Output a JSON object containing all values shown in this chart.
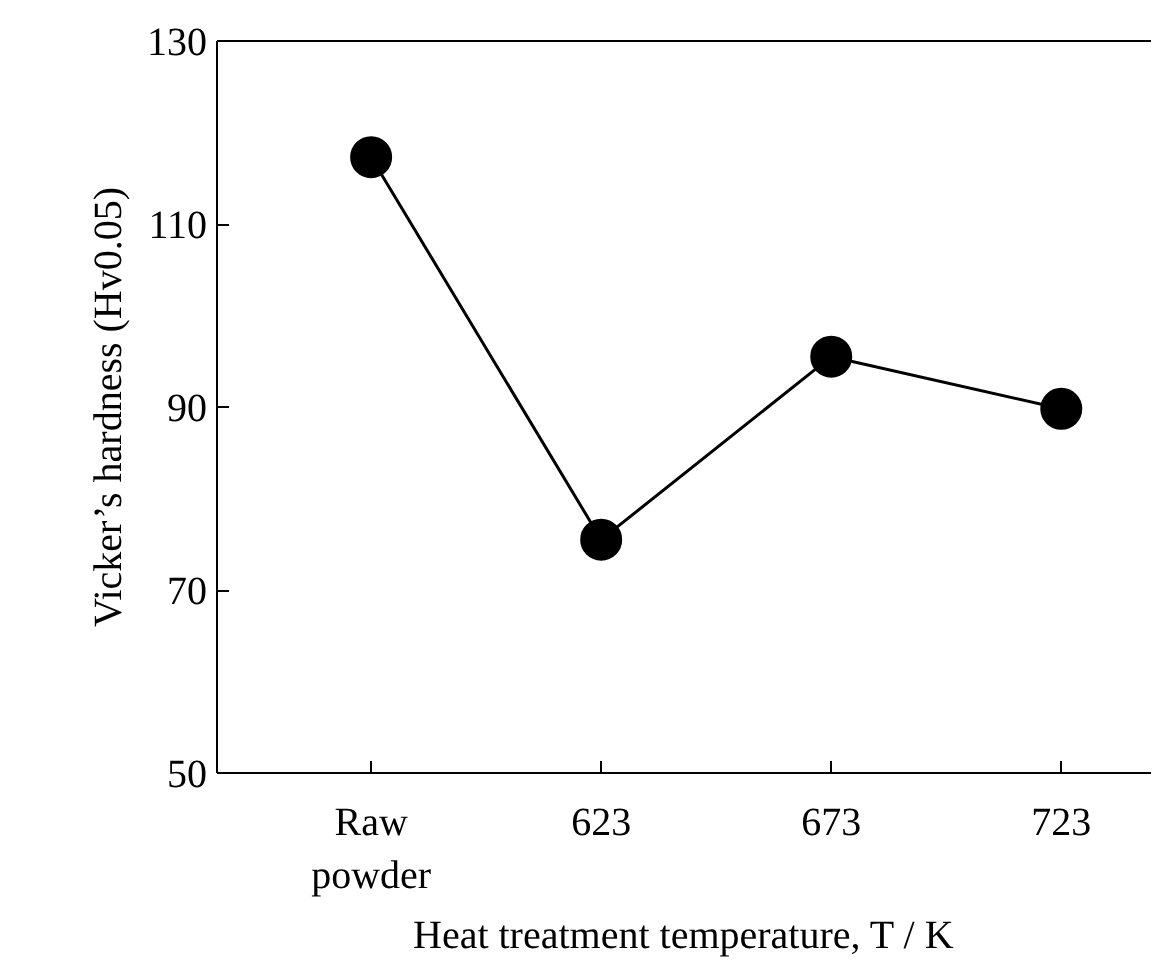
{
  "chart_data": {
    "type": "line",
    "xlabel": "Heat treatment temperature, T / K",
    "ylabel": "Vicker’s hardness (Hv0.05)",
    "categories": [
      "Raw\npowder",
      "623",
      "673",
      "723"
    ],
    "series": [
      {
        "color": "#000000",
        "values": [
          117.3,
          75.5,
          95.5,
          89.8
        ]
      }
    ],
    "ylim": [
      50,
      130
    ],
    "yticks": [
      50,
      70,
      90,
      110,
      130
    ],
    "grid": false,
    "marker": "circle",
    "line_style": "solid"
  }
}
